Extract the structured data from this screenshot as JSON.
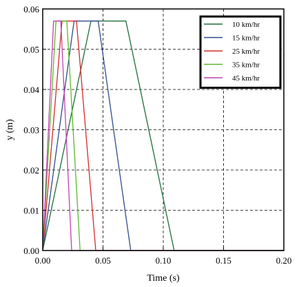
{
  "chart_data": {
    "type": "line",
    "title": "",
    "xlabel": "Time (s)",
    "ylabel": "y (m)",
    "xlim": [
      0,
      0.2
    ],
    "ylim": [
      0,
      0.06
    ],
    "xticks": [
      0,
      0.05,
      0.1,
      0.15,
      0.2
    ],
    "xtick_labels": [
      "0.00",
      "0.05",
      "0.10",
      "0.15",
      "0.20"
    ],
    "yticks": [
      0,
      0.01,
      0.02,
      0.03,
      0.04,
      0.05,
      0.06
    ],
    "ytick_labels": [
      "0.00",
      "0.01",
      "0.02",
      "0.03",
      "0.04",
      "0.05",
      "0.06"
    ],
    "grid": true,
    "legend_position": "top-right",
    "series": [
      {
        "name": "10 km/hr",
        "color": "#1e6b3a",
        "x": [
          0,
          0.04,
          0.069,
          0.109,
          0.2
        ],
        "y": [
          0,
          0.057,
          0.057,
          0,
          0
        ]
      },
      {
        "name": "15 km/hr",
        "color": "#2f4a8c",
        "x": [
          0,
          0.026,
          0.046,
          0.073,
          0.2
        ],
        "y": [
          0,
          0.057,
          0.057,
          0,
          0
        ]
      },
      {
        "name": "25 km/hr",
        "color": "#d42a2a",
        "x": [
          0,
          0.016,
          0.028,
          0.044,
          0.2
        ],
        "y": [
          0,
          0.057,
          0.057,
          0,
          0
        ]
      },
      {
        "name": "35 km/hr",
        "color": "#5cb82e",
        "x": [
          0,
          0.011,
          0.02,
          0.031,
          0.2
        ],
        "y": [
          0,
          0.057,
          0.057,
          0,
          0
        ]
      },
      {
        "name": "45 km/hr",
        "color": "#c23fb0",
        "x": [
          0,
          0.009,
          0.015,
          0.024,
          0.2
        ],
        "y": [
          0,
          0.057,
          0.057,
          0,
          0
        ]
      }
    ]
  }
}
